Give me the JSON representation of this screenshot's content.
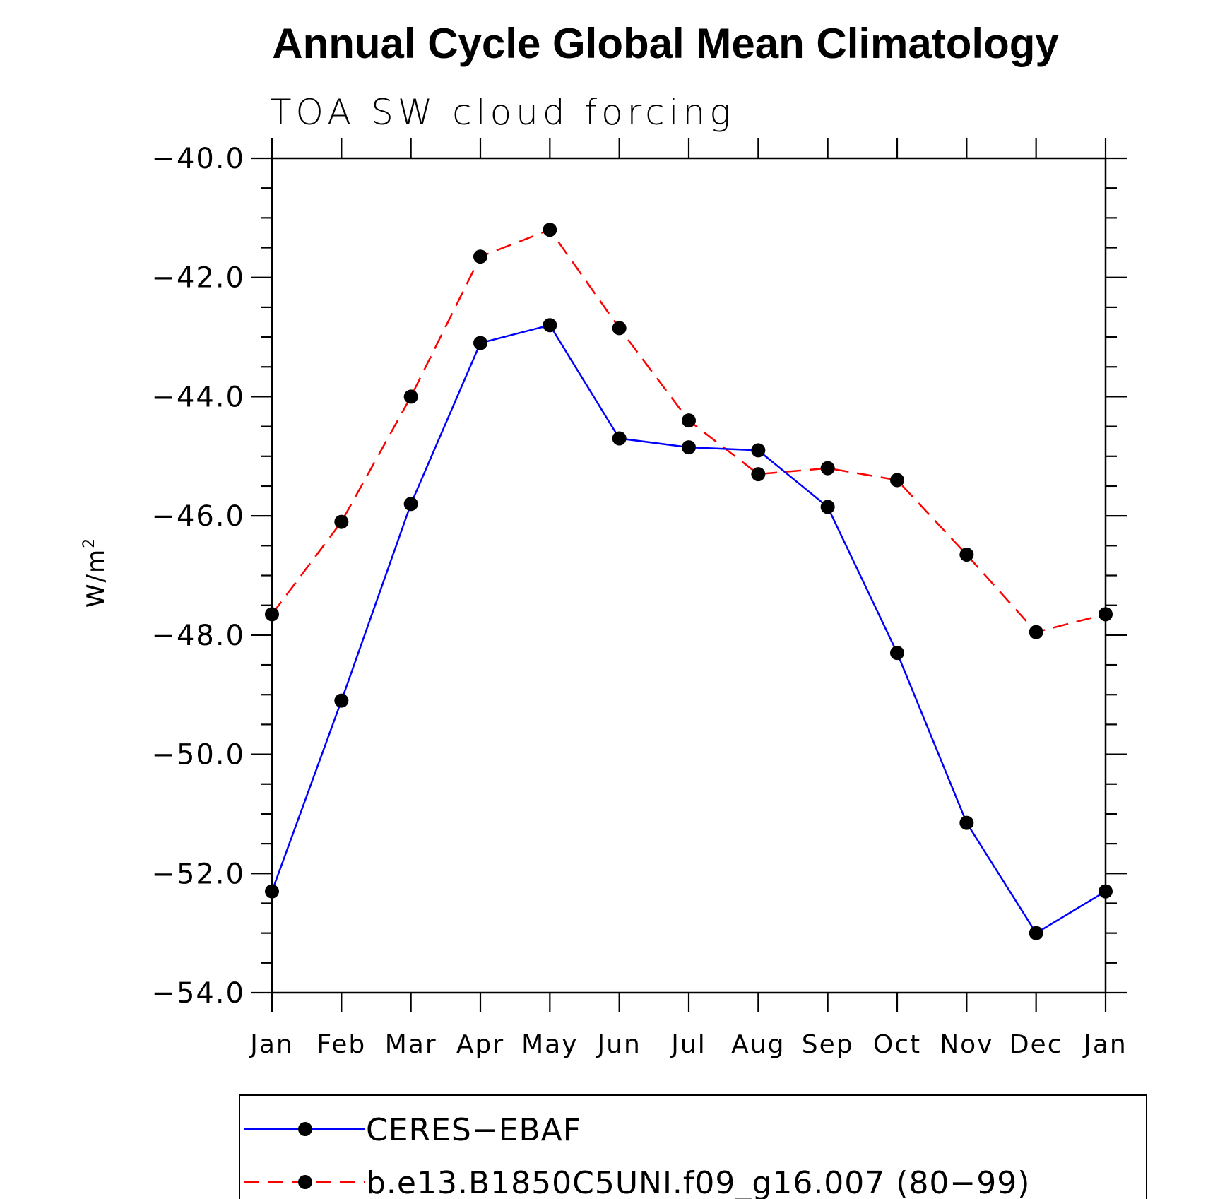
{
  "chart_data": {
    "type": "line",
    "title": "Annual Cycle Global Mean Climatology",
    "subtitle": "TOA SW cloud forcing",
    "ylabel": "W/m",
    "ylabel_sup": "2",
    "xlabel": "",
    "categories": [
      "Jan",
      "Feb",
      "Mar",
      "Apr",
      "May",
      "Jun",
      "Jul",
      "Aug",
      "Sep",
      "Oct",
      "Nov",
      "Dec",
      "Jan"
    ],
    "ylim": [
      -54.0,
      -40.0
    ],
    "yticks": [
      -40.0,
      -42.0,
      -44.0,
      -46.0,
      -48.0,
      -50.0,
      -52.0,
      -54.0
    ],
    "ytick_labels": [
      "−40.0",
      "−42.0",
      "−44.0",
      "−46.0",
      "−48.0",
      "−50.0",
      "−52.0",
      "−54.0"
    ],
    "grid": false,
    "legend_position": "bottom",
    "series": [
      {
        "name": "CERES−EBAF",
        "color": "#0000ff",
        "dash": "solid",
        "marker": "filled-circle",
        "values": [
          -52.3,
          -49.1,
          -45.8,
          -43.1,
          -42.8,
          -44.7,
          -44.85,
          -44.9,
          -45.85,
          -48.3,
          -51.15,
          -53.0,
          -52.3
        ]
      },
      {
        "name": "b.e13.B1850C5UNI.f09_g16.007 (80−99)",
        "color": "#ff0000",
        "dash": "dashed",
        "marker": "filled-circle",
        "values": [
          -47.65,
          -46.1,
          -44.0,
          -41.65,
          -41.2,
          -42.85,
          -44.4,
          -45.3,
          -45.2,
          -45.4,
          -46.65,
          -47.95,
          -47.65
        ]
      }
    ]
  }
}
